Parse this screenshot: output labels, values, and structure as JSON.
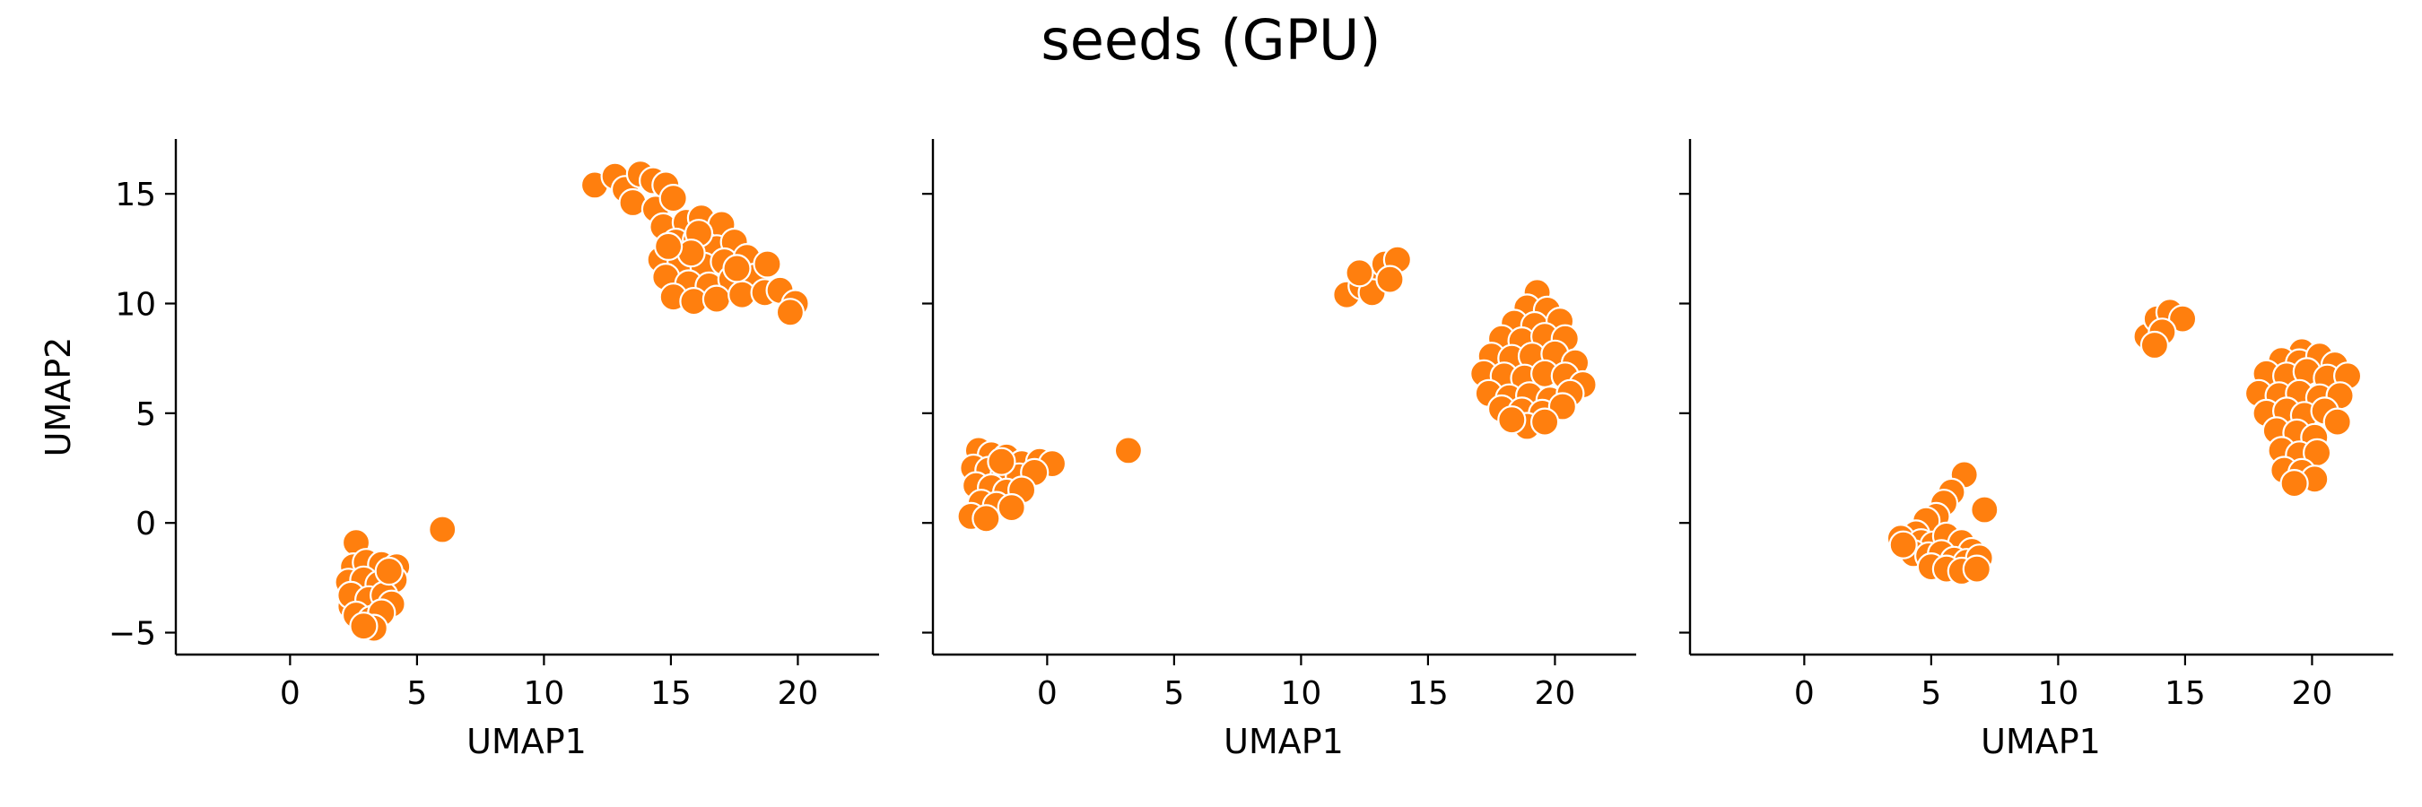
{
  "figure": {
    "title": "seeds (GPU)",
    "point_color": "#ff7f0e",
    "point_edge_color": "#ffffff"
  },
  "chart_data": [
    {
      "type": "scatter",
      "title": "",
      "xlabel": "UMAP1",
      "ylabel": "UMAP2",
      "xlim": [
        -4.5,
        23.2
      ],
      "ylim": [
        -6.0,
        17.5
      ],
      "xticks": [
        0,
        5,
        10,
        15,
        20
      ],
      "yticks": [
        -5,
        0,
        5,
        10,
        15
      ],
      "grid": false,
      "legend": "none",
      "series": [
        {
          "points": [
            [
              12.0,
              15.4
            ],
            [
              12.8,
              15.8
            ],
            [
              13.2,
              15.2
            ],
            [
              13.8,
              15.9
            ],
            [
              14.3,
              15.6
            ],
            [
              14.8,
              15.4
            ],
            [
              13.5,
              14.6
            ],
            [
              14.4,
              14.3
            ],
            [
              15.1,
              14.8
            ],
            [
              14.7,
              13.5
            ],
            [
              15.6,
              13.7
            ],
            [
              16.2,
              13.9
            ],
            [
              17.0,
              13.6
            ],
            [
              15.2,
              12.8
            ],
            [
              16.0,
              12.9
            ],
            [
              16.8,
              12.5
            ],
            [
              17.5,
              12.8
            ],
            [
              14.6,
              12.0
            ],
            [
              15.4,
              11.9
            ],
            [
              16.3,
              11.7
            ],
            [
              17.1,
              11.9
            ],
            [
              18.0,
              12.1
            ],
            [
              14.8,
              11.2
            ],
            [
              15.7,
              10.9
            ],
            [
              16.5,
              10.8
            ],
            [
              17.4,
              11.1
            ],
            [
              18.3,
              11.2
            ],
            [
              15.1,
              10.3
            ],
            [
              15.9,
              10.1
            ],
            [
              16.8,
              10.2
            ],
            [
              17.8,
              10.4
            ],
            [
              18.7,
              10.5
            ],
            [
              19.3,
              10.6
            ],
            [
              19.9,
              10.0
            ],
            [
              19.7,
              9.6
            ],
            [
              16.1,
              13.2
            ],
            [
              15.8,
              12.3
            ],
            [
              14.9,
              12.6
            ],
            [
              17.6,
              11.6
            ],
            [
              18.8,
              11.8
            ],
            [
              2.4,
              -3.8
            ],
            [
              2.6,
              -0.9
            ],
            [
              2.5,
              -2.0
            ],
            [
              3.0,
              -1.8
            ],
            [
              3.6,
              -1.9
            ],
            [
              4.2,
              -2.0
            ],
            [
              2.3,
              -2.7
            ],
            [
              2.9,
              -2.6
            ],
            [
              3.5,
              -2.8
            ],
            [
              4.1,
              -2.6
            ],
            [
              2.4,
              -3.3
            ],
            [
              3.1,
              -3.5
            ],
            [
              3.7,
              -3.3
            ],
            [
              4.0,
              -3.7
            ],
            [
              2.6,
              -4.2
            ],
            [
              3.2,
              -4.4
            ],
            [
              3.6,
              -4.1
            ],
            [
              3.3,
              -4.8
            ],
            [
              2.9,
              -4.7
            ],
            [
              3.9,
              -2.2
            ],
            [
              6.0,
              -0.3
            ]
          ]
        }
      ]
    },
    {
      "type": "scatter",
      "title": "",
      "xlabel": "UMAP1",
      "ylabel": "",
      "xlim": [
        -4.5,
        23.2
      ],
      "ylim": [
        -6.0,
        17.5
      ],
      "xticks": [
        0,
        5,
        10,
        15,
        20
      ],
      "yticks": [
        -5,
        0,
        5,
        10,
        15
      ],
      "grid": false,
      "legend": "none",
      "series": [
        {
          "points": [
            [
              -2.7,
              3.3
            ],
            [
              -2.2,
              3.1
            ],
            [
              -1.6,
              3.0
            ],
            [
              -1.0,
              2.7
            ],
            [
              -0.3,
              2.8
            ],
            [
              0.2,
              2.7
            ],
            [
              -2.9,
              2.5
            ],
            [
              -2.3,
              2.4
            ],
            [
              -1.7,
              2.2
            ],
            [
              -1.1,
              2.1
            ],
            [
              -0.5,
              2.3
            ],
            [
              -2.8,
              1.7
            ],
            [
              -2.2,
              1.6
            ],
            [
              -1.6,
              1.4
            ],
            [
              -1.0,
              1.5
            ],
            [
              -2.6,
              0.9
            ],
            [
              -2.0,
              0.8
            ],
            [
              -1.4,
              0.7
            ],
            [
              -3.0,
              0.3
            ],
            [
              -2.4,
              0.2
            ],
            [
              -1.8,
              2.8
            ],
            [
              3.2,
              3.3
            ],
            [
              11.8,
              10.4
            ],
            [
              12.4,
              10.8
            ],
            [
              12.9,
              11.3
            ],
            [
              13.3,
              11.8
            ],
            [
              13.8,
              12.0
            ],
            [
              12.8,
              10.5
            ],
            [
              13.5,
              11.1
            ],
            [
              12.3,
              11.4
            ],
            [
              19.3,
              10.5
            ],
            [
              18.9,
              9.8
            ],
            [
              19.7,
              9.7
            ],
            [
              18.4,
              9.1
            ],
            [
              19.2,
              9.0
            ],
            [
              20.2,
              9.2
            ],
            [
              17.9,
              8.4
            ],
            [
              18.7,
              8.3
            ],
            [
              19.6,
              8.5
            ],
            [
              20.4,
              8.4
            ],
            [
              17.5,
              7.6
            ],
            [
              18.3,
              7.5
            ],
            [
              19.1,
              7.6
            ],
            [
              20.0,
              7.7
            ],
            [
              20.8,
              7.3
            ],
            [
              17.2,
              6.8
            ],
            [
              18.0,
              6.7
            ],
            [
              18.8,
              6.6
            ],
            [
              19.6,
              6.8
            ],
            [
              20.4,
              6.7
            ],
            [
              21.1,
              6.3
            ],
            [
              17.4,
              5.9
            ],
            [
              18.2,
              5.7
            ],
            [
              19.0,
              5.8
            ],
            [
              19.8,
              5.6
            ],
            [
              20.6,
              5.9
            ],
            [
              17.9,
              5.2
            ],
            [
              18.7,
              5.1
            ],
            [
              19.5,
              5.0
            ],
            [
              20.3,
              5.3
            ],
            [
              18.9,
              4.4
            ],
            [
              19.6,
              4.6
            ],
            [
              18.3,
              4.7
            ]
          ]
        }
      ]
    },
    {
      "type": "scatter",
      "title": "",
      "xlabel": "UMAP1",
      "ylabel": "",
      "xlim": [
        -4.5,
        23.2
      ],
      "ylim": [
        -6.0,
        17.5
      ],
      "xticks": [
        0,
        5,
        10,
        15,
        20
      ],
      "yticks": [
        -5,
        0,
        5,
        10,
        15
      ],
      "grid": false,
      "legend": "none",
      "series": [
        {
          "points": [
            [
              6.3,
              2.2
            ],
            [
              5.8,
              1.4
            ],
            [
              5.5,
              0.9
            ],
            [
              5.2,
              0.3
            ],
            [
              7.1,
              0.6
            ],
            [
              4.8,
              0.1
            ],
            [
              4.4,
              -0.5
            ],
            [
              3.8,
              -0.7
            ],
            [
              4.1,
              -1.1
            ],
            [
              4.6,
              -0.9
            ],
            [
              5.1,
              -1.0
            ],
            [
              5.6,
              -0.6
            ],
            [
              6.2,
              -0.9
            ],
            [
              6.6,
              -1.3
            ],
            [
              4.3,
              -1.4
            ],
            [
              4.9,
              -1.5
            ],
            [
              5.4,
              -1.4
            ],
            [
              5.9,
              -1.7
            ],
            [
              6.4,
              -1.8
            ],
            [
              6.9,
              -1.6
            ],
            [
              5.0,
              -2.0
            ],
            [
              5.6,
              -2.1
            ],
            [
              6.2,
              -2.2
            ],
            [
              6.8,
              -2.1
            ],
            [
              3.9,
              -1.0
            ],
            [
              13.5,
              8.5
            ],
            [
              13.9,
              9.3
            ],
            [
              14.4,
              9.6
            ],
            [
              14.9,
              9.3
            ],
            [
              14.1,
              8.7
            ],
            [
              13.8,
              8.1
            ],
            [
              19.6,
              7.8
            ],
            [
              18.8,
              7.4
            ],
            [
              19.5,
              7.3
            ],
            [
              20.3,
              7.6
            ],
            [
              20.9,
              7.2
            ],
            [
              18.2,
              6.8
            ],
            [
              19.0,
              6.7
            ],
            [
              19.8,
              6.9
            ],
            [
              20.6,
              6.6
            ],
            [
              21.4,
              6.7
            ],
            [
              17.9,
              5.9
            ],
            [
              18.7,
              5.8
            ],
            [
              19.5,
              5.9
            ],
            [
              20.3,
              5.7
            ],
            [
              21.1,
              5.8
            ],
            [
              18.2,
              5.0
            ],
            [
              19.0,
              5.1
            ],
            [
              19.7,
              4.9
            ],
            [
              20.5,
              5.1
            ],
            [
              21.0,
              4.6
            ],
            [
              18.6,
              4.2
            ],
            [
              19.4,
              4.1
            ],
            [
              20.1,
              3.9
            ],
            [
              18.8,
              3.3
            ],
            [
              19.5,
              3.1
            ],
            [
              20.2,
              3.2
            ],
            [
              18.9,
              2.4
            ],
            [
              19.6,
              2.3
            ],
            [
              20.1,
              2.0
            ],
            [
              19.3,
              1.8
            ]
          ]
        }
      ]
    }
  ]
}
